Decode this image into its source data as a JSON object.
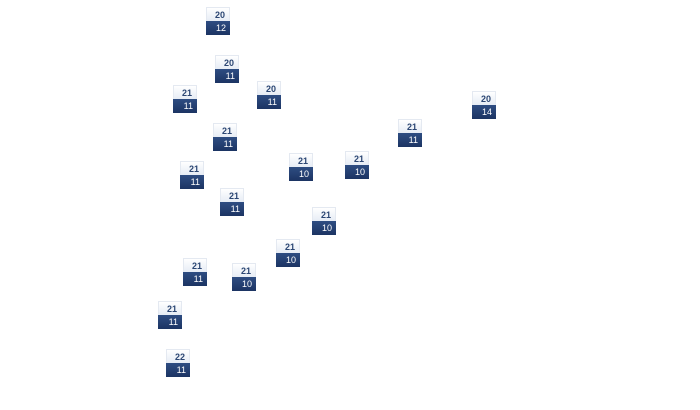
{
  "badges": [
    {
      "top": "20",
      "bottom": "12"
    },
    {
      "top": "20",
      "bottom": "11"
    },
    {
      "top": "21",
      "bottom": "11"
    },
    {
      "top": "20",
      "bottom": "11"
    },
    {
      "top": "21",
      "bottom": "11"
    },
    {
      "top": "20",
      "bottom": "14"
    },
    {
      "top": "21",
      "bottom": "11"
    },
    {
      "top": "21",
      "bottom": "10"
    },
    {
      "top": "21",
      "bottom": "10"
    },
    {
      "top": "21",
      "bottom": "11"
    },
    {
      "top": "21",
      "bottom": "11"
    },
    {
      "top": "21",
      "bottom": "10"
    },
    {
      "top": "21",
      "bottom": "10"
    },
    {
      "top": "21",
      "bottom": "11"
    },
    {
      "top": "21",
      "bottom": "10"
    },
    {
      "top": "21",
      "bottom": "11"
    },
    {
      "top": "22",
      "bottom": "11"
    }
  ],
  "colors": {
    "top_text": "#2b4673",
    "bottom_bg": "#1c3463",
    "bottom_text": "#ffffff"
  }
}
